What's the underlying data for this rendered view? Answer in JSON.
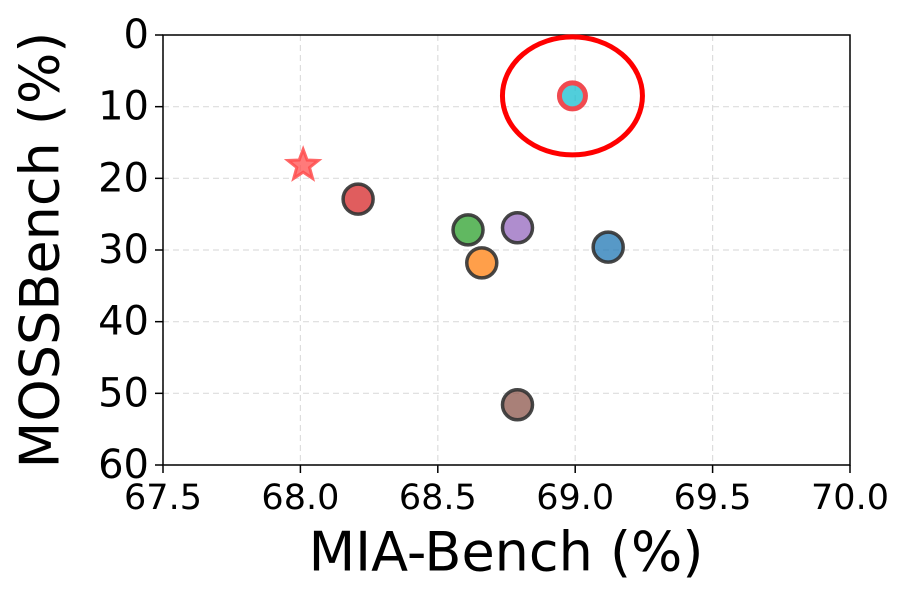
{
  "chart_data": {
    "type": "scatter",
    "x_label": "MIA-Bench (%)",
    "y_label": "MOSSBench (%)",
    "xlim": [
      67.5,
      70.0
    ],
    "ylim": [
      60,
      0
    ],
    "y_inverted": true,
    "xticks": [
      67.5,
      {
        "value": 68,
        "label": "68.0"
      },
      68.5,
      {
        "value": 69,
        "label": "69.0"
      },
      69.5,
      {
        "value": 70,
        "label": "70.0"
      }
    ],
    "yticks": [
      0,
      10,
      20,
      30,
      40,
      50,
      60
    ],
    "grid": true,
    "x": [
      68.01,
      68.21,
      68.61,
      68.66,
      68.79,
      69.12,
      68.79,
      68.99
    ],
    "y": [
      18.2,
      22.9,
      27.2,
      31.8,
      26.9,
      29.6,
      51.6,
      8.5
    ],
    "colors": [
      "#ff4d4d",
      "#d62728",
      "#2ca02c",
      "#ff7f0e",
      "#9467bd",
      "#1f77b4",
      "#8c564b",
      "#17becf"
    ],
    "markers": [
      "star",
      "circle",
      "circle",
      "circle",
      "circle",
      "circle",
      "circle",
      "circle"
    ],
    "highlight_edge": [
      false,
      false,
      false,
      false,
      false,
      false,
      false,
      true
    ]
  }
}
